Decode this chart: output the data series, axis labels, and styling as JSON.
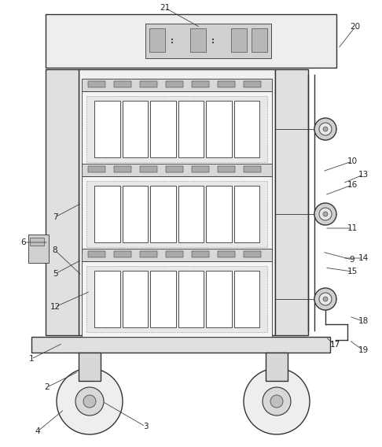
{
  "bg_color": "#ffffff",
  "lc": "#333333",
  "fc_cabinet": "#f8f8f8",
  "fc_panel": "#efefef",
  "fc_col": "#e0e0e0",
  "fc_tray": "#f5f5f5",
  "fc_slot": "#ffffff",
  "fc_bar": "#d8d8d8",
  "fc_display": "#c8c8c8",
  "fc_wheel": "#e8e8e8",
  "fc_hub": "#c8c8c8",
  "fc_base": "#e0e0e0"
}
